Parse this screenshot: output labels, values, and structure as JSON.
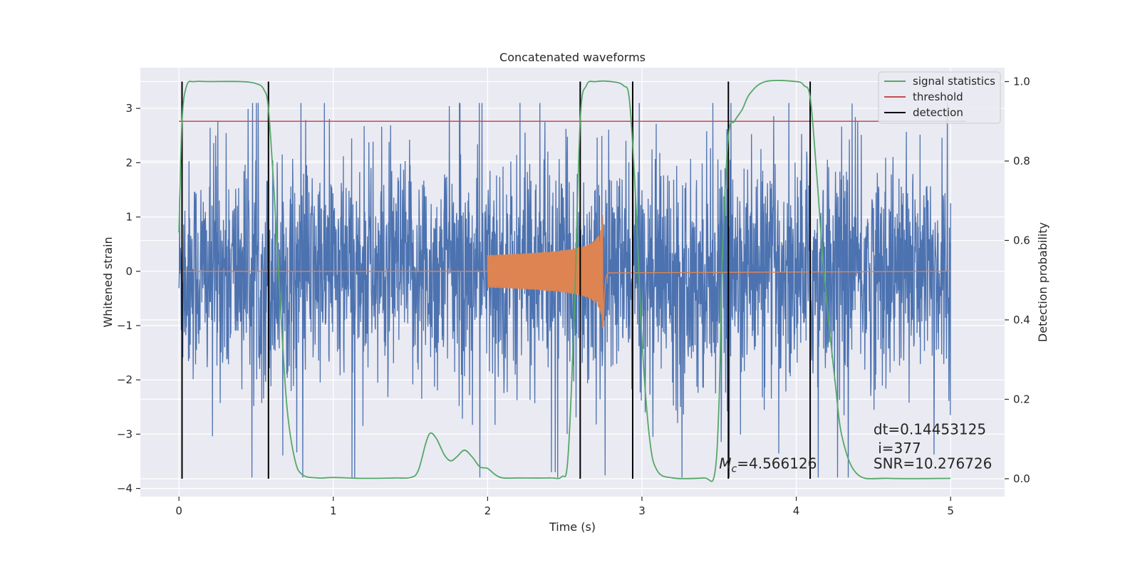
{
  "chart_data": {
    "type": "line",
    "title": "Concatenated waveforms",
    "xlabel": "Time (s)",
    "ylabel": "Whitened strain",
    "y2label": "Detection probability",
    "xlim": [
      -0.25,
      5.35
    ],
    "ylim": [
      -4.15,
      3.75
    ],
    "y2lim": [
      -0.045,
      1.035
    ],
    "xticks": [
      0,
      1,
      2,
      3,
      4,
      5
    ],
    "xtick_labels": [
      "0",
      "1",
      "2",
      "3",
      "4",
      "5"
    ],
    "yticks": [
      -4,
      -3,
      -2,
      -1,
      0,
      1,
      2,
      3
    ],
    "ytick_labels": [
      "−4",
      "−3",
      "−2",
      "−1",
      "0",
      "1",
      "2",
      "3"
    ],
    "y2ticks": [
      0.0,
      0.2,
      0.4,
      0.6,
      0.8,
      1.0
    ],
    "y2tick_labels": [
      "0.0",
      "0.2",
      "0.4",
      "0.6",
      "0.8",
      "1.0"
    ],
    "grid": true,
    "legend_position": "top-right",
    "colors": {
      "strain": "#4c72b0",
      "template": "#dd8452",
      "signal_statistics": "#55a868",
      "threshold": "#c44e52",
      "detection": "#000000",
      "background": "#eaeaf2",
      "grid": "#ffffff"
    },
    "legend": [
      {
        "label": "signal statistics",
        "color": "#55a868"
      },
      {
        "label": "threshold",
        "color": "#c44e52"
      },
      {
        "label": "detection",
        "color": "#000000"
      }
    ],
    "strain_range": {
      "t_start": 0.0,
      "t_end": 5.0
    },
    "template": {
      "t_start": 2.0,
      "t_merger": 2.75,
      "peak_amplitude": 1.25
    },
    "threshold": {
      "value": 0.9,
      "x": [
        0.0,
        5.1
      ]
    },
    "detections": [
      0.02,
      0.58,
      2.6,
      2.94,
      3.56,
      4.09
    ],
    "signal_statistics": {
      "x": [
        0.0,
        0.02,
        0.05,
        0.1,
        0.2,
        0.4,
        0.5,
        0.55,
        0.58,
        0.62,
        0.66,
        0.7,
        0.75,
        0.8,
        0.9,
        1.0,
        1.2,
        1.4,
        1.5,
        1.55,
        1.6,
        1.63,
        1.67,
        1.72,
        1.76,
        1.8,
        1.85,
        1.9,
        1.95,
        2.0,
        2.05,
        2.1,
        2.2,
        2.4,
        2.48,
        2.52,
        2.56,
        2.6,
        2.64,
        2.7,
        2.8,
        2.88,
        2.92,
        2.96,
        3.0,
        3.05,
        3.1,
        3.2,
        3.4,
        3.47,
        3.5,
        3.52,
        3.56,
        3.6,
        3.65,
        3.7,
        3.8,
        4.0,
        4.05,
        4.09,
        4.13,
        4.18,
        4.25,
        4.3,
        4.4,
        4.6,
        5.0
      ],
      "y": [
        0.62,
        0.9,
        0.99,
        1.0,
        1.0,
        1.0,
        0.995,
        0.98,
        0.93,
        0.7,
        0.42,
        0.18,
        0.05,
        0.01,
        0.002,
        0.003,
        0.001,
        0.002,
        0.003,
        0.02,
        0.09,
        0.115,
        0.1,
        0.06,
        0.045,
        0.055,
        0.072,
        0.055,
        0.03,
        0.026,
        0.01,
        0.002,
        0.002,
        0.002,
        0.005,
        0.05,
        0.4,
        0.9,
        0.99,
        1.0,
        1.0,
        0.99,
        0.95,
        0.7,
        0.35,
        0.1,
        0.02,
        0.002,
        0.002,
        0.01,
        0.2,
        0.55,
        0.86,
        0.9,
        0.93,
        0.97,
        1.0,
        1.0,
        0.99,
        0.96,
        0.78,
        0.52,
        0.25,
        0.1,
        0.01,
        0.001,
        0.001
      ]
    },
    "annotations": [
      {
        "text": "dt=0.14453125",
        "x": 4.5,
        "y": -3.0
      },
      {
        "text": " i=377",
        "x": 4.5,
        "y": -3.35
      },
      {
        "text": "SNR=10.276726",
        "x": 4.5,
        "y": -3.63
      },
      {
        "text_prefix": "M",
        "text_sub": "c",
        "text_suffix": "=4.566126",
        "x": 3.5,
        "y": -3.63
      }
    ]
  }
}
